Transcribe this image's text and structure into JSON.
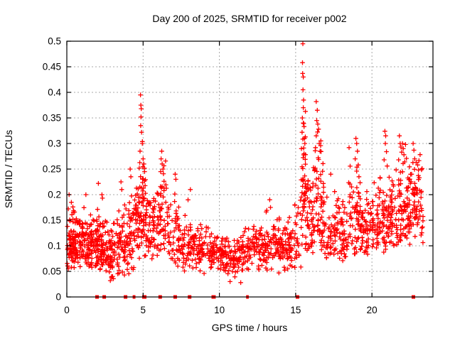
{
  "page": {
    "background": "#ffffff",
    "foreground": "#000000"
  },
  "chart_data": {
    "type": "scatter",
    "title": "Day 200 of 2025, SRMTID for receiver p002",
    "xlabel": "GPS time / hours",
    "ylabel": "SRMTID / TECUs",
    "xlim": [
      0,
      24
    ],
    "ylim": [
      0,
      0.5
    ],
    "xticks": [
      0,
      5,
      10,
      15,
      20
    ],
    "xtick_labels": [
      "0",
      "5",
      "10",
      "15",
      "20"
    ],
    "yticks": [
      0,
      0.05,
      0.1,
      0.15,
      0.2,
      0.25,
      0.3,
      0.35,
      0.4,
      0.45,
      0.5
    ],
    "ytick_labels": [
      "0",
      "0.05",
      "0.1",
      "0.15",
      "0.2",
      "0.25",
      "0.3",
      "0.35",
      "0.4",
      "0.45",
      "0.5"
    ],
    "grid": true,
    "grid_color": "#a8a8a8",
    "legend": "none",
    "series_name": "SRMTID",
    "marker": {
      "shape": "plus",
      "color": "#ff0000",
      "size": 7
    },
    "seed": 200,
    "band_format": "[x_start_hours, x_end_hours, point_count, y_center, y_spread, y_min, y_max]",
    "density_bands": [
      [
        0.02,
        0.45,
        60,
        0.115,
        0.038,
        0.055,
        0.2
      ],
      [
        0.45,
        1.05,
        68,
        0.105,
        0.03,
        0.05,
        0.18
      ],
      [
        1.05,
        1.65,
        68,
        0.103,
        0.028,
        0.055,
        0.175
      ],
      [
        1.65,
        2.15,
        55,
        0.1,
        0.03,
        0.05,
        0.19
      ],
      [
        2.15,
        2.65,
        55,
        0.103,
        0.035,
        0.045,
        0.21
      ],
      [
        2.65,
        3.25,
        55,
        0.085,
        0.03,
        0.032,
        0.16
      ],
      [
        3.25,
        3.85,
        50,
        0.1,
        0.035,
        0.04,
        0.22
      ],
      [
        3.85,
        4.45,
        55,
        0.12,
        0.045,
        0.045,
        0.26
      ],
      [
        4.45,
        4.78,
        38,
        0.145,
        0.045,
        0.07,
        0.26
      ],
      [
        4.78,
        5.28,
        58,
        0.165,
        0.055,
        0.08,
        0.32
      ],
      [
        5.28,
        5.85,
        45,
        0.135,
        0.04,
        0.07,
        0.24
      ],
      [
        5.85,
        6.5,
        55,
        0.148,
        0.05,
        0.08,
        0.27
      ],
      [
        6.5,
        7.35,
        55,
        0.125,
        0.038,
        0.06,
        0.24
      ],
      [
        7.35,
        8.25,
        55,
        0.105,
        0.03,
        0.05,
        0.2
      ],
      [
        8.25,
        9.45,
        75,
        0.095,
        0.025,
        0.05,
        0.165
      ],
      [
        9.45,
        10.25,
        58,
        0.082,
        0.022,
        0.04,
        0.14
      ],
      [
        10.25,
        11.25,
        68,
        0.075,
        0.02,
        0.035,
        0.13
      ],
      [
        11.25,
        12.05,
        58,
        0.09,
        0.025,
        0.045,
        0.16
      ],
      [
        12.05,
        13.05,
        68,
        0.095,
        0.025,
        0.05,
        0.17
      ],
      [
        13.05,
        14.05,
        68,
        0.096,
        0.027,
        0.05,
        0.18
      ],
      [
        14.05,
        14.9,
        55,
        0.1,
        0.028,
        0.05,
        0.175
      ],
      [
        14.9,
        15.35,
        25,
        0.11,
        0.04,
        0.055,
        0.21
      ],
      [
        15.35,
        15.65,
        45,
        0.2,
        0.08,
        0.09,
        0.4
      ],
      [
        15.65,
        16.25,
        55,
        0.155,
        0.055,
        0.07,
        0.3
      ],
      [
        16.25,
        16.85,
        55,
        0.175,
        0.06,
        0.09,
        0.34
      ],
      [
        16.85,
        17.7,
        55,
        0.13,
        0.033,
        0.07,
        0.22
      ],
      [
        17.7,
        18.45,
        55,
        0.125,
        0.033,
        0.07,
        0.22
      ],
      [
        18.45,
        19.25,
        60,
        0.145,
        0.045,
        0.08,
        0.28
      ],
      [
        19.25,
        20.25,
        70,
        0.13,
        0.033,
        0.08,
        0.23
      ],
      [
        20.25,
        21.05,
        65,
        0.14,
        0.04,
        0.085,
        0.26
      ],
      [
        21.05,
        21.75,
        60,
        0.15,
        0.042,
        0.09,
        0.27
      ],
      [
        21.75,
        22.55,
        78,
        0.17,
        0.048,
        0.095,
        0.3
      ],
      [
        22.55,
        23.35,
        62,
        0.175,
        0.05,
        0.1,
        0.295
      ]
    ],
    "outlier_points": [
      [
        0.15,
        0.2
      ],
      [
        0.3,
        0.185
      ],
      [
        1.25,
        0.2
      ],
      [
        2.07,
        0.222
      ],
      [
        2.3,
        0.2
      ],
      [
        3.55,
        0.225
      ],
      [
        3.6,
        0.21
      ],
      [
        4.15,
        0.25
      ],
      [
        4.2,
        0.235
      ],
      [
        4.83,
        0.395
      ],
      [
        4.85,
        0.375
      ],
      [
        4.88,
        0.368
      ],
      [
        4.86,
        0.352
      ],
      [
        4.84,
        0.335
      ],
      [
        4.9,
        0.322
      ],
      [
        4.95,
        0.3
      ],
      [
        4.8,
        0.285
      ],
      [
        5.0,
        0.27
      ],
      [
        5.05,
        0.26
      ],
      [
        4.75,
        0.252
      ],
      [
        5.1,
        0.245
      ],
      [
        6.22,
        0.285
      ],
      [
        6.18,
        0.27
      ],
      [
        6.25,
        0.26
      ],
      [
        6.3,
        0.25
      ],
      [
        6.15,
        0.245
      ],
      [
        7.1,
        0.24
      ],
      [
        7.15,
        0.23
      ],
      [
        8.1,
        0.21
      ],
      [
        13.3,
        0.19
      ],
      [
        13.35,
        0.175
      ],
      [
        15.47,
        0.495
      ],
      [
        15.45,
        0.458
      ],
      [
        15.46,
        0.437
      ],
      [
        15.5,
        0.43
      ],
      [
        15.48,
        0.405
      ],
      [
        15.52,
        0.385
      ],
      [
        15.5,
        0.37
      ],
      [
        15.44,
        0.35
      ],
      [
        15.5,
        0.34
      ],
      [
        15.55,
        0.333
      ],
      [
        15.42,
        0.322
      ],
      [
        15.58,
        0.31
      ],
      [
        15.6,
        0.3
      ],
      [
        15.38,
        0.29
      ],
      [
        15.55,
        0.28
      ],
      [
        16.35,
        0.382
      ],
      [
        16.42,
        0.365
      ],
      [
        16.38,
        0.345
      ],
      [
        16.45,
        0.338
      ],
      [
        16.5,
        0.328
      ],
      [
        16.35,
        0.315
      ],
      [
        16.55,
        0.3
      ],
      [
        16.3,
        0.292
      ],
      [
        16.6,
        0.285
      ],
      [
        16.48,
        0.272
      ],
      [
        17.3,
        0.24
      ],
      [
        18.5,
        0.292
      ],
      [
        18.95,
        0.31
      ],
      [
        19.0,
        0.3
      ],
      [
        19.05,
        0.285
      ],
      [
        18.9,
        0.27
      ],
      [
        19.1,
        0.258
      ],
      [
        19.0,
        0.246
      ],
      [
        19.15,
        0.235
      ],
      [
        20.85,
        0.324
      ],
      [
        20.9,
        0.315
      ],
      [
        20.88,
        0.3
      ],
      [
        20.95,
        0.284
      ],
      [
        20.8,
        0.268
      ],
      [
        21.0,
        0.256
      ],
      [
        21.8,
        0.315
      ],
      [
        21.85,
        0.3
      ],
      [
        21.9,
        0.293
      ],
      [
        22.0,
        0.3
      ],
      [
        22.05,
        0.29
      ],
      [
        21.95,
        0.283
      ],
      [
        22.1,
        0.278
      ],
      [
        21.75,
        0.268
      ],
      [
        22.15,
        0.264
      ],
      [
        22.2,
        0.298
      ],
      [
        22.7,
        0.3
      ],
      [
        22.75,
        0.287
      ],
      [
        22.8,
        0.27
      ],
      [
        22.9,
        0.263
      ],
      [
        23.0,
        0.258
      ],
      [
        23.05,
        0.248
      ],
      [
        22.6,
        0.24
      ],
      [
        23.1,
        0.233
      ],
      [
        2.85,
        0.032
      ],
      [
        3.0,
        0.04
      ],
      [
        9.0,
        0.046
      ],
      [
        10.7,
        0.03
      ],
      [
        11.4,
        0.028
      ],
      [
        13.9,
        0.047
      ]
    ],
    "zero_markers": {
      "marker": "filled-square",
      "color": "#ff0000",
      "y": 0,
      "points": [
        {
          "x": 1.98,
          "w": 5
        },
        {
          "x": 2.45,
          "w": 5
        },
        {
          "x": 3.85,
          "w": 5
        },
        {
          "x": 4.36,
          "w": 2
        },
        {
          "x": 4.45,
          "w": 2
        },
        {
          "x": 5.08,
          "w": 6
        },
        {
          "x": 6.12,
          "w": 5
        },
        {
          "x": 7.1,
          "w": 5
        },
        {
          "x": 8.05,
          "w": 5
        },
        {
          "x": 9.53,
          "w": 2
        },
        {
          "x": 9.62,
          "w": 2
        },
        {
          "x": 9.71,
          "w": 2
        },
        {
          "x": 11.8,
          "w": 2
        },
        {
          "x": 11.88,
          "w": 2
        },
        {
          "x": 15.12,
          "w": 5
        },
        {
          "x": 22.72,
          "w": 5
        }
      ]
    }
  }
}
